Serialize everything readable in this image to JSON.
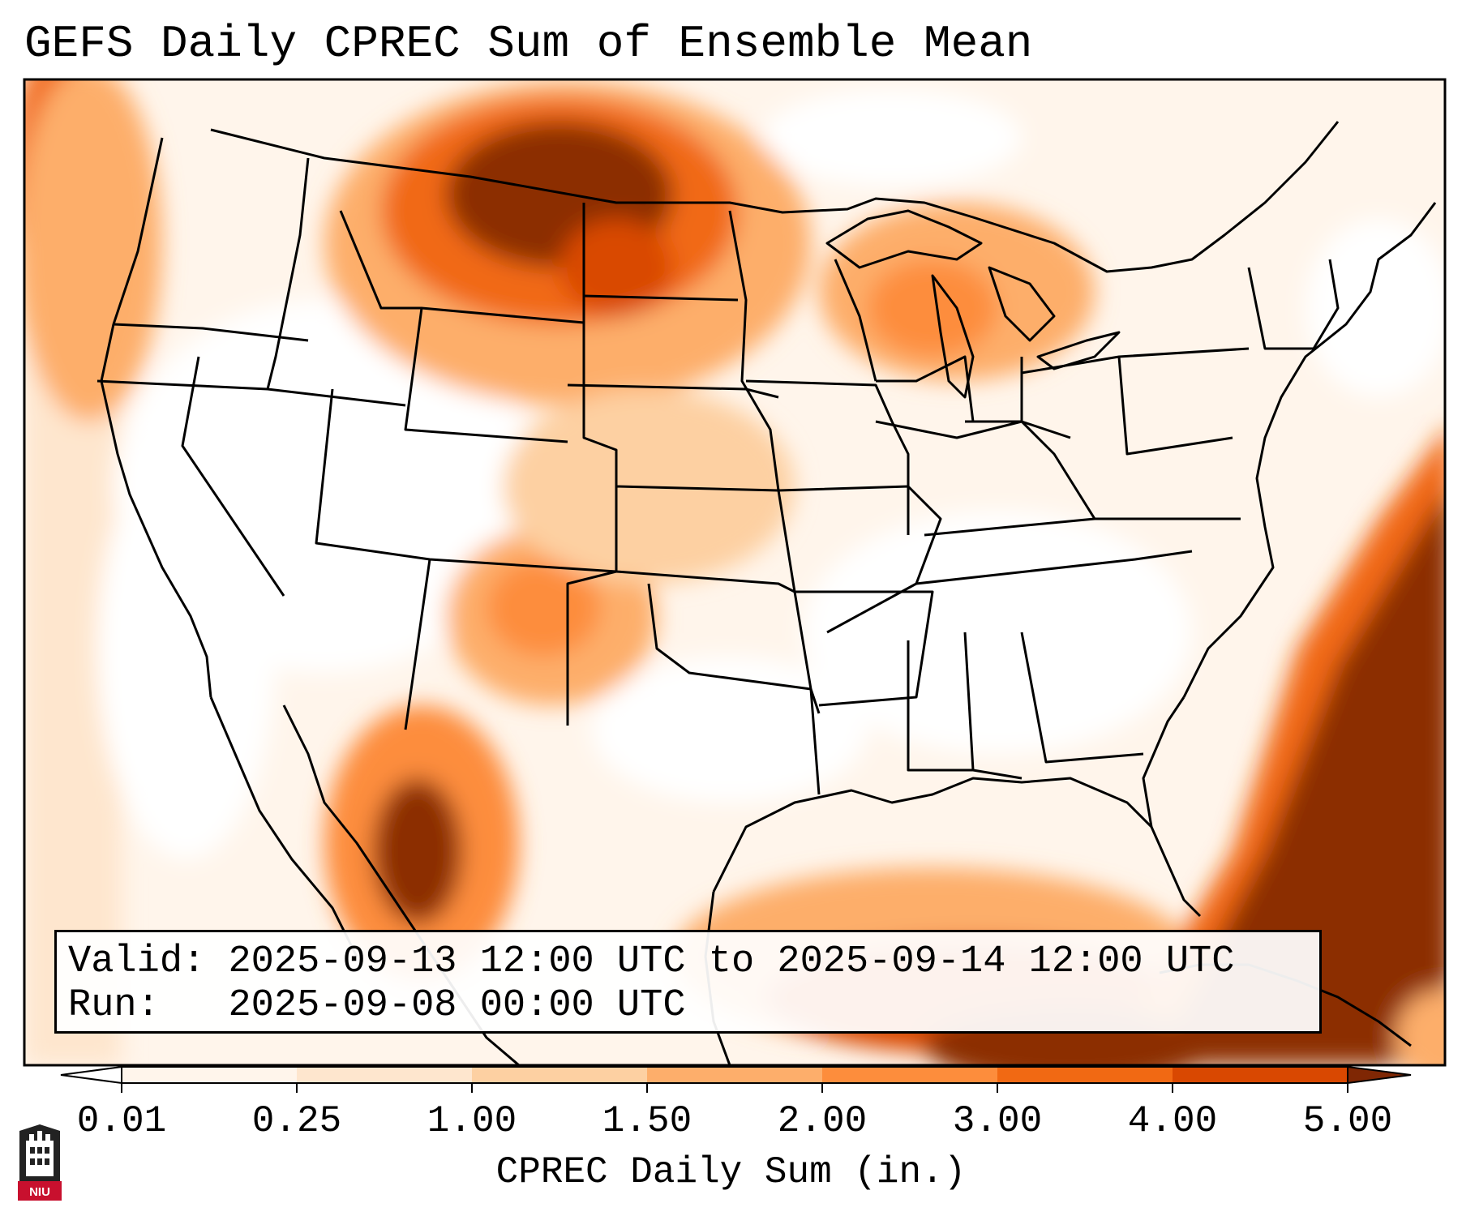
{
  "title": "GEFS Daily CPREC Sum of Ensemble Mean",
  "info": {
    "valid_label": "Valid:",
    "valid_value": "2025-09-13 12:00 UTC to 2025-09-14 12:00 UTC",
    "run_label": "Run:",
    "run_value": "2025-09-08 00:00 UTC"
  },
  "colorbar": {
    "label": "CPREC Daily Sum (in.)",
    "ticks": [
      "0.01",
      "0.25",
      "1.00",
      "1.50",
      "2.00",
      "3.00",
      "4.00",
      "5.00"
    ],
    "colors": [
      "#fff5eb",
      "#fee6ce",
      "#fdd0a2",
      "#fdae6b",
      "#fd8d3c",
      "#f16913",
      "#d94801",
      "#8c2d04"
    ],
    "under_color": "#ffffff",
    "over_color": "#7f2704"
  },
  "logo": {
    "text": "NIU",
    "color": "#c8102e"
  },
  "map": {
    "region": "Contiguous United States",
    "border_color": "#000000"
  }
}
